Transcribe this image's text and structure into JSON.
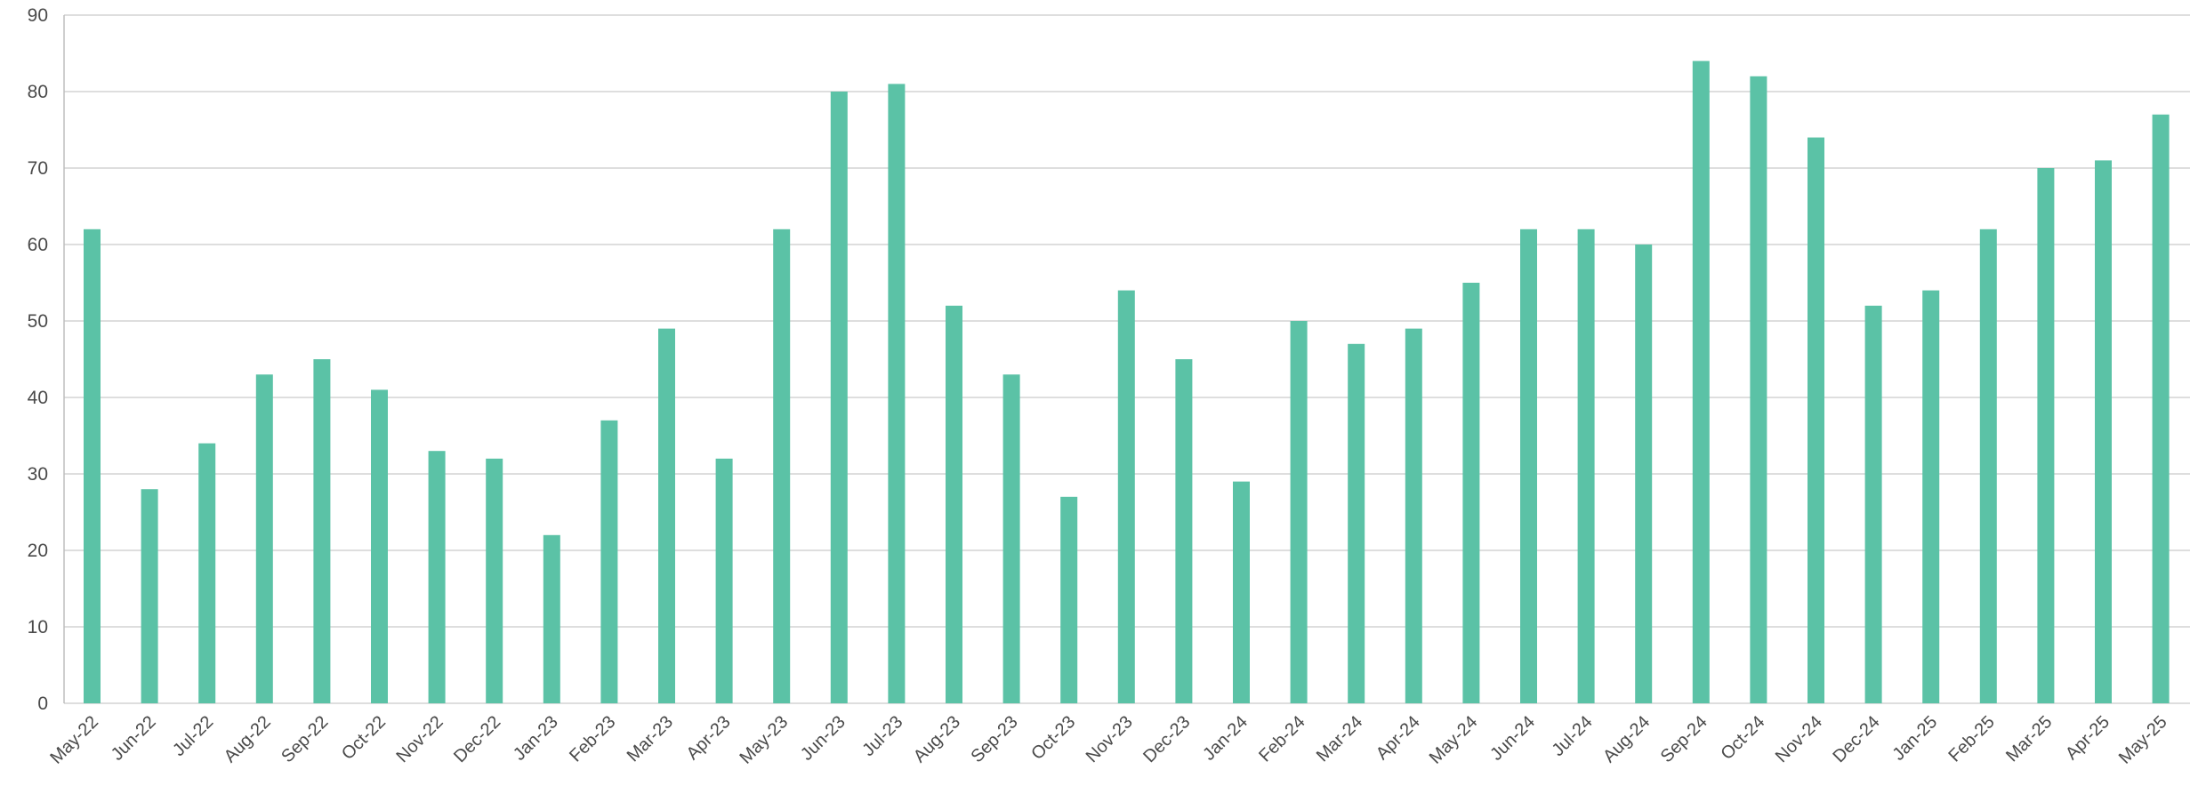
{
  "chart_data": {
    "type": "bar",
    "categories": [
      "May-22",
      "Jun-22",
      "Jul-22",
      "Aug-22",
      "Sep-22",
      "Oct-22",
      "Nov-22",
      "Dec-22",
      "Jan-23",
      "Feb-23",
      "Mar-23",
      "Apr-23",
      "May-23",
      "Jun-23",
      "Jul-23",
      "Aug-23",
      "Sep-23",
      "Oct-23",
      "Nov-23",
      "Dec-23",
      "Jan-24",
      "Feb-24",
      "Mar-24",
      "Apr-24",
      "May-24",
      "Jun-24",
      "Jul-24",
      "Aug-24",
      "Sep-24",
      "Oct-24",
      "Nov-24",
      "Dec-24",
      "Jan-25",
      "Feb-25",
      "Mar-25",
      "Apr-25",
      "May-25"
    ],
    "values": [
      62,
      28,
      34,
      43,
      45,
      41,
      33,
      32,
      22,
      37,
      49,
      32,
      62,
      80,
      81,
      52,
      43,
      27,
      54,
      45,
      29,
      50,
      47,
      49,
      55,
      62,
      62,
      60,
      84,
      82,
      74,
      52,
      54,
      62,
      70,
      71,
      77
    ],
    "ylim": [
      0,
      90
    ],
    "yticks": [
      0,
      10,
      20,
      30,
      40,
      50,
      60,
      70,
      80,
      90
    ],
    "grid": true,
    "bar_color": "#5bc2a6",
    "title": "",
    "xlabel": "",
    "ylabel": ""
  }
}
